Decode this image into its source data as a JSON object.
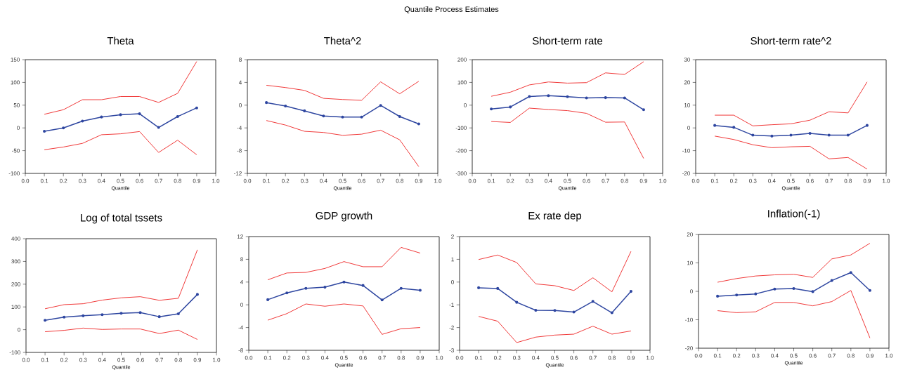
{
  "chart_data": [
    {
      "type": "line",
      "title": "Theta",
      "xlabel": "Quantile",
      "annotations": [
        "Quantile Process Estimates"
      ],
      "x": [
        0.1,
        0.2,
        0.3,
        0.4,
        0.5,
        0.6,
        0.7,
        0.8,
        0.9
      ],
      "xlim": [
        0,
        1
      ],
      "xticks": [
        {
          "value": 0,
          "label": "0.0"
        },
        {
          "value": 0.1,
          "label": "0.1"
        },
        {
          "value": 0.2,
          "label": "0.2"
        },
        {
          "value": 0.3,
          "label": "0.3"
        },
        {
          "value": 0.4,
          "label": "0.4"
        },
        {
          "value": 0.5,
          "label": "0.5"
        },
        {
          "value": 0.6,
          "label": "0.6"
        },
        {
          "value": 0.7,
          "label": "0.7"
        },
        {
          "value": 0.8,
          "label": "0.8"
        },
        {
          "value": 0.9,
          "label": "0.9"
        },
        {
          "value": 1,
          "label": "1.0"
        }
      ],
      "ylim": [
        -100,
        150
      ],
      "yticks": [
        -100,
        -50,
        0,
        50,
        100,
        150
      ],
      "series": [
        {
          "color": "#2e46a0",
          "marker": "circle",
          "values": [
            -7.5,
            0,
            15,
            24,
            29,
            31,
            1,
            25,
            44
          ]
        },
        {
          "color": "#ee2222",
          "values": [
            30,
            40,
            62,
            62,
            69,
            69,
            56,
            76,
            146
          ]
        },
        {
          "color": "#ee2222",
          "values": [
            -48,
            -42,
            -34,
            -15,
            -13,
            -8,
            -54,
            -27,
            -59
          ]
        }
      ]
    },
    {
      "type": "line",
      "title": "Theta^2",
      "xlabel": "Quantile",
      "x": [
        0.1,
        0.2,
        0.3,
        0.4,
        0.5,
        0.6,
        0.7,
        0.8,
        0.9
      ],
      "xlim": [
        0,
        1
      ],
      "xticks": [
        {
          "value": 0,
          "label": "0.0"
        },
        {
          "value": 0.1,
          "label": "0.1"
        },
        {
          "value": 0.2,
          "label": "0.2"
        },
        {
          "value": 0.3,
          "label": "0.3"
        },
        {
          "value": 0.4,
          "label": "0.4"
        },
        {
          "value": 0.5,
          "label": "0.5"
        },
        {
          "value": 0.6,
          "label": "0.6"
        },
        {
          "value": 0.7,
          "label": "0.7"
        },
        {
          "value": 0.8,
          "label": "0.8"
        },
        {
          "value": 0.9,
          "label": "0.9"
        },
        {
          "value": 1,
          "label": "1.0"
        }
      ],
      "ylim": [
        -12,
        8
      ],
      "yticks": [
        -12,
        -8,
        -4,
        0,
        4,
        8
      ],
      "series": [
        {
          "color": "#2e46a0",
          "marker": "circle",
          "values": [
            0.45,
            -0.15,
            -1.0,
            -1.9,
            -2.1,
            -2.1,
            -0.05,
            -2.0,
            -3.3
          ]
        },
        {
          "color": "#ee2222",
          "values": [
            3.5,
            3.1,
            2.6,
            1.2,
            1.0,
            0.85,
            4.1,
            2.0,
            4.2
          ]
        },
        {
          "color": "#ee2222",
          "values": [
            -2.7,
            -3.5,
            -4.6,
            -4.8,
            -5.3,
            -5.1,
            -4.4,
            -6.1,
            -10.8
          ]
        }
      ]
    },
    {
      "type": "line",
      "title": "Short-term rate",
      "xlabel": "Quantile",
      "x": [
        0.1,
        0.2,
        0.3,
        0.4,
        0.5,
        0.6,
        0.7,
        0.8,
        0.9
      ],
      "xlim": [
        0,
        1
      ],
      "xticks": [
        {
          "value": 0,
          "label": "0.0"
        },
        {
          "value": 0.1,
          "label": "0.1"
        },
        {
          "value": 0.2,
          "label": "0.2"
        },
        {
          "value": 0.3,
          "label": "0.3"
        },
        {
          "value": 0.4,
          "label": "0.4"
        },
        {
          "value": 0.5,
          "label": "0.5"
        },
        {
          "value": 0.6,
          "label": "0.6"
        },
        {
          "value": 0.7,
          "label": "0.7"
        },
        {
          "value": 0.8,
          "label": "0.8"
        },
        {
          "value": 0.9,
          "label": "0.9"
        },
        {
          "value": 1,
          "label": "1.0"
        }
      ],
      "ylim": [
        -300,
        200
      ],
      "yticks": [
        -300,
        -200,
        -100,
        0,
        100,
        200
      ],
      "series": [
        {
          "color": "#2e46a0",
          "marker": "circle",
          "values": [
            -17,
            -8,
            38,
            42,
            37,
            32,
            33,
            32,
            -20
          ]
        },
        {
          "color": "#ee2222",
          "values": [
            39,
            57,
            89,
            102,
            97,
            99,
            142,
            135,
            191
          ]
        },
        {
          "color": "#ee2222",
          "values": [
            -72,
            -76,
            -13,
            -19,
            -24,
            -36,
            -75,
            -74,
            -234
          ]
        }
      ]
    },
    {
      "type": "line",
      "title": "Short-term rate^2",
      "xlabel": "Quantile",
      "x": [
        0.1,
        0.2,
        0.3,
        0.4,
        0.5,
        0.6,
        0.7,
        0.8,
        0.9
      ],
      "xlim": [
        0,
        1
      ],
      "xticks": [
        {
          "value": 0,
          "label": "0.0"
        },
        {
          "value": 0.1,
          "label": "0.1"
        },
        {
          "value": 0.2,
          "label": "0.2"
        },
        {
          "value": 0.3,
          "label": "0.3"
        },
        {
          "value": 0.4,
          "label": "0.4"
        },
        {
          "value": 0.5,
          "label": "0.5"
        },
        {
          "value": 0.6,
          "label": "0.6"
        },
        {
          "value": 0.7,
          "label": "0.7"
        },
        {
          "value": 0.8,
          "label": "0.8"
        },
        {
          "value": 0.9,
          "label": "0.9"
        },
        {
          "value": 1,
          "label": "1.0"
        }
      ],
      "ylim": [
        -20,
        30
      ],
      "yticks": [
        -20,
        -10,
        0,
        10,
        20,
        30
      ],
      "series": [
        {
          "color": "#2e46a0",
          "marker": "circle",
          "values": [
            1.1,
            0.25,
            -3.2,
            -3.6,
            -3.2,
            -2.4,
            -3.2,
            -3.2,
            1.1
          ]
        },
        {
          "color": "#ee2222",
          "values": [
            5.6,
            5.6,
            0.9,
            1.4,
            1.8,
            3.4,
            7.1,
            6.6,
            20.2
          ]
        },
        {
          "color": "#ee2222",
          "values": [
            -3.6,
            -5.1,
            -7.4,
            -8.7,
            -8.3,
            -8.1,
            -13.6,
            -13.0,
            -18.1
          ]
        }
      ]
    },
    {
      "type": "line",
      "title": "Log of total tssets",
      "xlabel": "Quantile",
      "x": [
        0.1,
        0.2,
        0.3,
        0.4,
        0.5,
        0.6,
        0.7,
        0.8,
        0.9
      ],
      "xlim": [
        0,
        1
      ],
      "xticks": [
        {
          "value": 0,
          "label": "0.0"
        },
        {
          "value": 0.1,
          "label": "0.1"
        },
        {
          "value": 0.2,
          "label": "0.2"
        },
        {
          "value": 0.3,
          "label": "0.3"
        },
        {
          "value": 0.4,
          "label": "0.4"
        },
        {
          "value": 0.5,
          "label": "0.5"
        },
        {
          "value": 0.6,
          "label": "0.6"
        },
        {
          "value": 0.7,
          "label": "0.7"
        },
        {
          "value": 0.8,
          "label": "0.8"
        },
        {
          "value": 0.9,
          "label": "0.9"
        },
        {
          "value": 1,
          "label": "1.0"
        }
      ],
      "ylim": [
        -100,
        400
      ],
      "yticks": [
        -100,
        0,
        100,
        200,
        300,
        400
      ],
      "series": [
        {
          "color": "#2e46a0",
          "marker": "circle",
          "values": [
            41,
            55,
            61,
            66,
            72,
            75,
            57,
            70,
            155
          ]
        },
        {
          "color": "#ee2222",
          "values": [
            92,
            110,
            114,
            130,
            140,
            145,
            129,
            138,
            351
          ]
        },
        {
          "color": "#ee2222",
          "values": [
            -9,
            -3,
            7,
            1,
            3,
            3,
            -17,
            -2,
            -43
          ]
        }
      ]
    },
    {
      "type": "line",
      "title": "GDP growth",
      "xlabel": "Quantile",
      "x": [
        0.1,
        0.2,
        0.3,
        0.4,
        0.5,
        0.6,
        0.7,
        0.8,
        0.9
      ],
      "xlim": [
        0,
        1
      ],
      "xticks": [
        {
          "value": 0,
          "label": "0.0"
        },
        {
          "value": 0.1,
          "label": "0.1"
        },
        {
          "value": 0.2,
          "label": "0.2"
        },
        {
          "value": 0.3,
          "label": "0.3"
        },
        {
          "value": 0.4,
          "label": "0.4"
        },
        {
          "value": 0.5,
          "label": "0.5"
        },
        {
          "value": 0.6,
          "label": "0.6"
        },
        {
          "value": 0.7,
          "label": "0.7"
        },
        {
          "value": 0.8,
          "label": "0.8"
        },
        {
          "value": 0.9,
          "label": "0.9"
        },
        {
          "value": 1,
          "label": "1.0"
        }
      ],
      "ylim": [
        -8,
        12
      ],
      "yticks": [
        -8,
        -4,
        0,
        4,
        8,
        12
      ],
      "series": [
        {
          "color": "#2e46a0",
          "marker": "circle",
          "values": [
            0.9,
            2.1,
            2.9,
            3.1,
            4.0,
            3.4,
            0.85,
            2.9,
            2.55
          ]
        },
        {
          "color": "#ee2222",
          "values": [
            4.4,
            5.6,
            5.7,
            6.4,
            7.6,
            6.7,
            6.7,
            10.1,
            9.1
          ]
        },
        {
          "color": "#ee2222",
          "values": [
            -2.7,
            -1.55,
            0.15,
            -0.25,
            0.15,
            -0.2,
            -5.2,
            -4.2,
            -4.0
          ]
        }
      ]
    },
    {
      "type": "line",
      "title": "Ex rate dep",
      "xlabel": "Quantile",
      "x": [
        0.1,
        0.2,
        0.3,
        0.4,
        0.5,
        0.6,
        0.7,
        0.8,
        0.9
      ],
      "xlim": [
        0,
        1
      ],
      "xticks": [
        {
          "value": 0,
          "label": "0.0"
        },
        {
          "value": 0.1,
          "label": "0.1"
        },
        {
          "value": 0.2,
          "label": "0.2"
        },
        {
          "value": 0.3,
          "label": "0.3"
        },
        {
          "value": 0.4,
          "label": "0.4"
        },
        {
          "value": 0.5,
          "label": "0.5"
        },
        {
          "value": 0.6,
          "label": "0.6"
        },
        {
          "value": 0.7,
          "label": "0.7"
        },
        {
          "value": 0.8,
          "label": "0.8"
        },
        {
          "value": 0.9,
          "label": "0.9"
        },
        {
          "value": 1,
          "label": "1.0"
        }
      ],
      "ylim": [
        -3,
        2
      ],
      "yticks": [
        -3,
        -2,
        -1,
        0,
        1,
        2
      ],
      "series": [
        {
          "color": "#2e46a0",
          "marker": "circle",
          "values": [
            -0.25,
            -0.28,
            -0.89,
            -1.24,
            -1.25,
            -1.32,
            -0.85,
            -1.35,
            -0.41
          ]
        },
        {
          "color": "#ee2222",
          "values": [
            0.99,
            1.19,
            0.86,
            -0.08,
            -0.16,
            -0.37,
            0.19,
            -0.43,
            1.35
          ]
        },
        {
          "color": "#ee2222",
          "values": [
            -1.51,
            -1.72,
            -2.66,
            -2.42,
            -2.33,
            -2.29,
            -1.94,
            -2.29,
            -2.15
          ]
        }
      ]
    },
    {
      "type": "line",
      "title": "Inflation(-1)",
      "xlabel": "Quantile",
      "x": [
        0.1,
        0.2,
        0.3,
        0.4,
        0.5,
        0.6,
        0.7,
        0.8,
        0.9
      ],
      "xlim": [
        0,
        1
      ],
      "xticks": [
        {
          "value": 0,
          "label": "0.0"
        },
        {
          "value": 0.1,
          "label": "0.1"
        },
        {
          "value": 0.2,
          "label": "0.2"
        },
        {
          "value": 0.3,
          "label": "0.3"
        },
        {
          "value": 0.4,
          "label": "0.4"
        },
        {
          "value": 0.5,
          "label": "0.5"
        },
        {
          "value": 0.6,
          "label": "0.6"
        },
        {
          "value": 0.7,
          "label": "0.7"
        },
        {
          "value": 0.8,
          "label": "0.8"
        },
        {
          "value": 0.9,
          "label": "0.9"
        },
        {
          "value": 1,
          "label": "1.0"
        }
      ],
      "ylim": [
        -20,
        20
      ],
      "yticks": [
        -20,
        -10,
        0,
        10,
        20
      ],
      "series": [
        {
          "color": "#2e46a0",
          "marker": "circle",
          "values": [
            -1.7,
            -1.3,
            -0.9,
            0.8,
            1.0,
            -0.1,
            3.8,
            6.6,
            0.3
          ]
        },
        {
          "color": "#ee2222",
          "values": [
            3.2,
            4.5,
            5.4,
            5.8,
            6.0,
            4.9,
            11.4,
            12.8,
            16.9
          ]
        },
        {
          "color": "#ee2222",
          "values": [
            -6.8,
            -7.5,
            -7.2,
            -3.9,
            -3.9,
            -5.1,
            -3.6,
            0.3,
            -16.4
          ]
        }
      ]
    }
  ]
}
